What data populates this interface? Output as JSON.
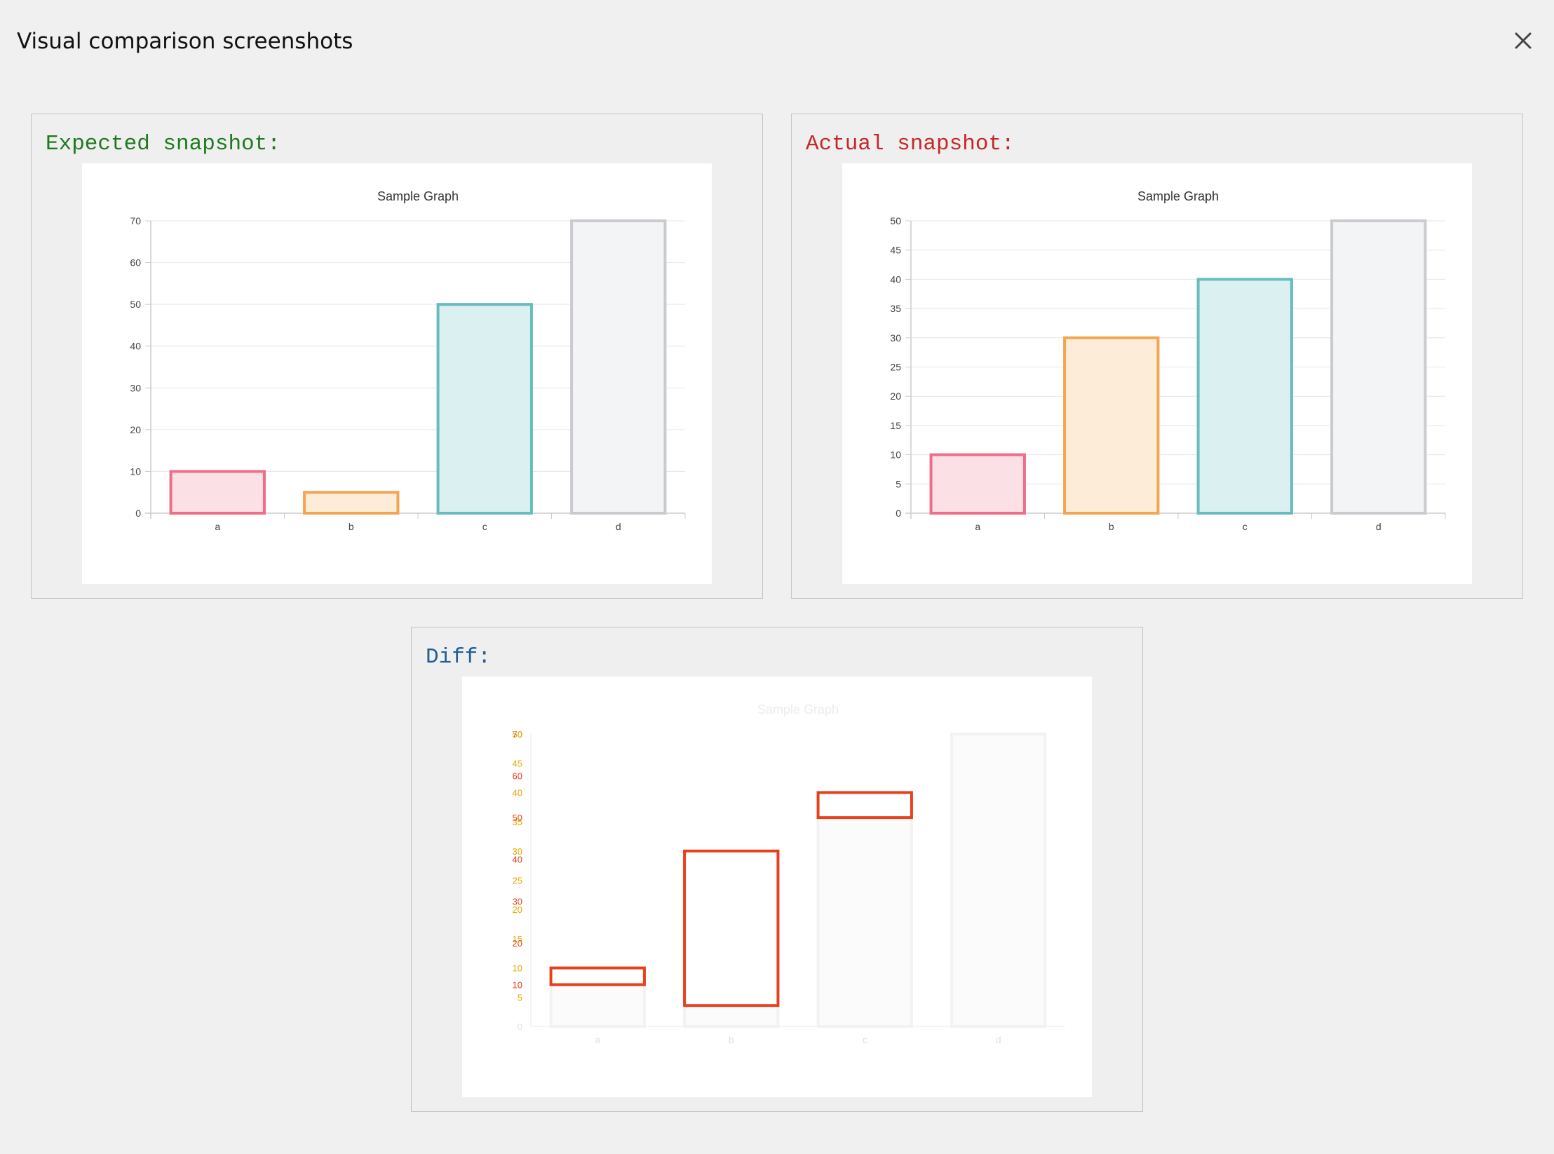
{
  "dialog": {
    "title": "Visual comparison screenshots",
    "close_icon": "close-icon"
  },
  "panels": {
    "expected": {
      "heading": "Expected snapshot:",
      "heading_color": "#1f7a1f"
    },
    "actual": {
      "heading": "Actual snapshot:",
      "heading_color": "#c62828"
    },
    "diff": {
      "heading": "Diff:",
      "heading_color": "#1f5f99"
    }
  },
  "chart_data": [
    {
      "id": "expected",
      "type": "bar",
      "title": "Sample Graph",
      "categories": [
        "a",
        "b",
        "c",
        "d"
      ],
      "values": [
        10,
        5,
        50,
        70
      ],
      "ylim": [
        0,
        70
      ],
      "yticks": [
        "0",
        "10",
        "20",
        "30",
        "40",
        "50",
        "60",
        "70"
      ],
      "grid": true,
      "colors": [
        "#f06d8a",
        "#f2a653",
        "#68bcbc",
        "#c9cbcf"
      ],
      "fills": [
        "#fbe0e6",
        "#fdecd8",
        "#dbf0f0",
        "#f3f4f5"
      ]
    },
    {
      "id": "actual",
      "type": "bar",
      "title": "Sample Graph",
      "categories": [
        "a",
        "b",
        "c",
        "d"
      ],
      "values": [
        10,
        30,
        40,
        50
      ],
      "ylim": [
        0,
        50
      ],
      "yticks": [
        "0",
        "5",
        "10",
        "15",
        "20",
        "25",
        "30",
        "35",
        "40",
        "45",
        "50"
      ],
      "grid": true,
      "colors": [
        "#f06d8a",
        "#f2a653",
        "#68bcbc",
        "#c9cbcf"
      ],
      "fills": [
        "#fbe0e6",
        "#fdecd8",
        "#dbf0f0",
        "#f3f4f5"
      ]
    }
  ],
  "diff": {
    "title": "Sample Graph",
    "categories": [
      "a",
      "b",
      "c",
      "d"
    ],
    "highlight_color": "#e8401c",
    "tick_highlight_color": "#e8a600",
    "tick_label": "0"
  }
}
